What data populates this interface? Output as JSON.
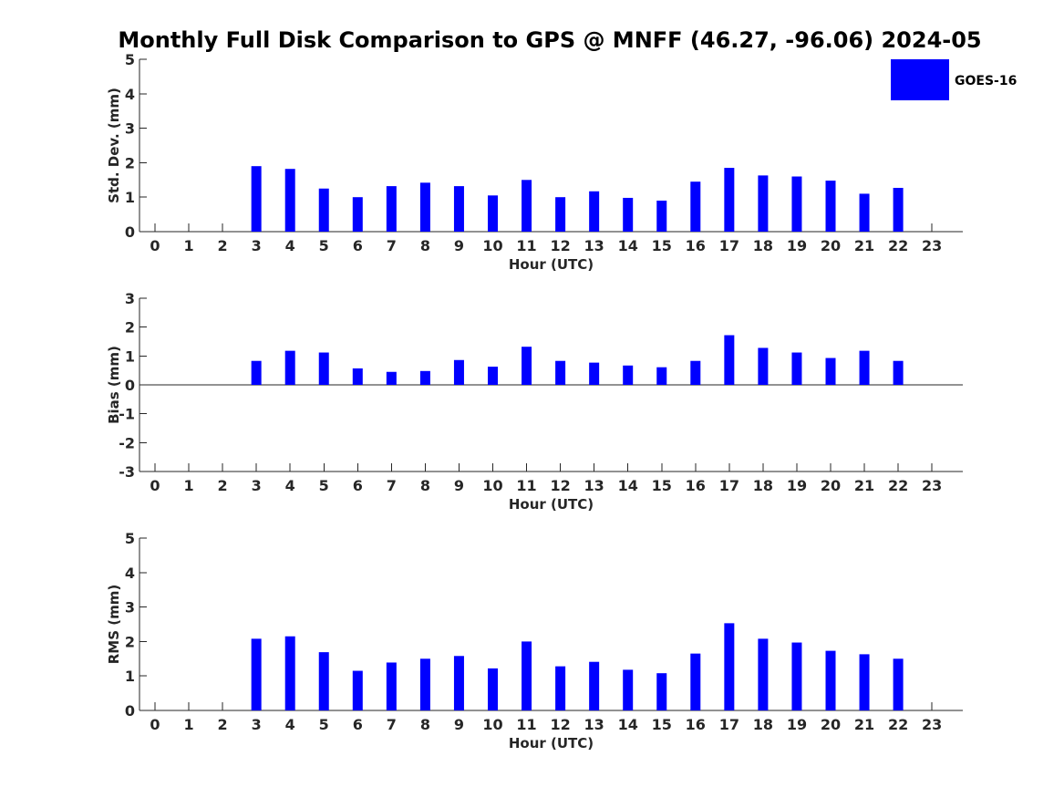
{
  "figure": {
    "title": "Monthly Full Disk Comparison to GPS @ MNFF (46.27, -96.06) 2024-05"
  },
  "legend": {
    "label": "GOES-16",
    "position": "top-right",
    "color": "#0000ff"
  },
  "chart_data": [
    {
      "type": "bar",
      "ylabel": "Std. Dev. (mm)",
      "xlabel": "Hour (UTC)",
      "categories": [
        "0",
        "1",
        "2",
        "3",
        "4",
        "5",
        "6",
        "7",
        "8",
        "9",
        "10",
        "11",
        "12",
        "13",
        "14",
        "15",
        "16",
        "17",
        "18",
        "19",
        "20",
        "21",
        "22",
        "23"
      ],
      "ylim": [
        0,
        5
      ],
      "yticks": [
        0,
        1,
        2,
        3,
        4,
        5
      ],
      "grid": false,
      "series": [
        {
          "name": "GOES-16",
          "color": "#0000ff",
          "values": [
            null,
            null,
            null,
            1.9,
            1.82,
            1.25,
            1.0,
            1.32,
            1.42,
            1.32,
            1.05,
            1.5,
            1.0,
            1.17,
            0.98,
            0.9,
            1.45,
            1.85,
            1.63,
            1.6,
            1.48,
            1.1,
            1.27,
            null
          ]
        }
      ]
    },
    {
      "type": "bar",
      "ylabel": "Bias (mm)",
      "xlabel": "Hour (UTC)",
      "categories": [
        "0",
        "1",
        "2",
        "3",
        "4",
        "5",
        "6",
        "7",
        "8",
        "9",
        "10",
        "11",
        "12",
        "13",
        "14",
        "15",
        "16",
        "17",
        "18",
        "19",
        "20",
        "21",
        "22",
        "23"
      ],
      "ylim": [
        -3,
        3
      ],
      "yticks": [
        -3,
        -2,
        -1,
        0,
        1,
        2,
        3
      ],
      "zero_line": true,
      "grid": false,
      "series": [
        {
          "name": "GOES-16",
          "color": "#0000ff",
          "values": [
            null,
            null,
            null,
            0.83,
            1.18,
            1.12,
            0.57,
            0.45,
            0.48,
            0.86,
            0.63,
            1.32,
            0.83,
            0.77,
            0.67,
            0.61,
            0.83,
            1.72,
            1.28,
            1.12,
            0.93,
            1.18,
            0.83,
            null
          ]
        }
      ]
    },
    {
      "type": "bar",
      "ylabel": "RMS (mm)",
      "xlabel": "Hour (UTC)",
      "categories": [
        "0",
        "1",
        "2",
        "3",
        "4",
        "5",
        "6",
        "7",
        "8",
        "9",
        "10",
        "11",
        "12",
        "13",
        "14",
        "15",
        "16",
        "17",
        "18",
        "19",
        "20",
        "21",
        "22",
        "23"
      ],
      "ylim": [
        0,
        5
      ],
      "yticks": [
        0,
        1,
        2,
        3,
        4,
        5
      ],
      "grid": false,
      "series": [
        {
          "name": "GOES-16",
          "color": "#0000ff",
          "values": [
            null,
            null,
            null,
            2.08,
            2.15,
            1.69,
            1.15,
            1.39,
            1.5,
            1.58,
            1.22,
            2.0,
            1.28,
            1.41,
            1.18,
            1.08,
            1.65,
            2.53,
            2.08,
            1.97,
            1.73,
            1.63,
            1.5,
            null
          ]
        }
      ]
    }
  ]
}
